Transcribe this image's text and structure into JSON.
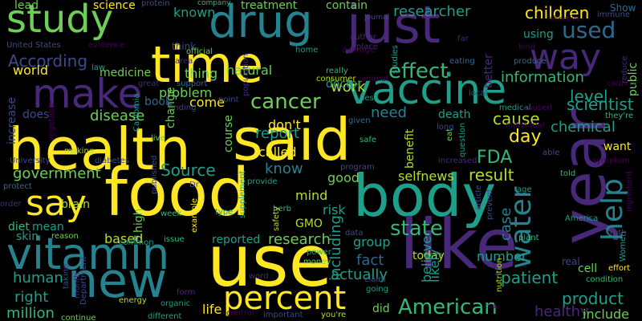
{
  "background_color": "#000000",
  "palette": {
    "yellow": "#fde725",
    "lime": "#b5de2b",
    "green": "#6ece58",
    "sea": "#35b779",
    "teal": "#1f9e89",
    "cyan": "#26828e",
    "blue": "#31688e",
    "indigo": "#3e4989",
    "purple": "#482878",
    "dark": "#440154"
  },
  "words": [
    {
      "text": "health"
    },
    {
      "text": "said"
    },
    {
      "text": "food"
    },
    {
      "text": "body"
    },
    {
      "text": "year"
    },
    {
      "text": "like"
    },
    {
      "text": "use"
    },
    {
      "text": "time"
    },
    {
      "text": "new"
    },
    {
      "text": "just"
    },
    {
      "text": "vitamin"
    },
    {
      "text": "drug"
    },
    {
      "text": "study"
    },
    {
      "text": "make"
    },
    {
      "text": "vaccine"
    },
    {
      "text": "way"
    },
    {
      "text": "say"
    },
    {
      "text": "percent"
    },
    {
      "text": "water"
    },
    {
      "text": "help"
    },
    {
      "text": "cancer"
    },
    {
      "text": "American"
    },
    {
      "text": "effect"
    },
    {
      "text": "used"
    },
    {
      "text": "state"
    },
    {
      "text": "children"
    },
    {
      "text": "Source"
    },
    {
      "text": "government"
    },
    {
      "text": "product"
    },
    {
      "text": "researcher"
    },
    {
      "text": "According"
    },
    {
      "text": "information"
    },
    {
      "text": "level"
    },
    {
      "text": "chemical"
    },
    {
      "text": "day"
    },
    {
      "text": "cause"
    },
    {
      "text": "FDA"
    },
    {
      "text": "selfnews"
    },
    {
      "text": "result"
    },
    {
      "text": "research"
    },
    {
      "text": "disease"
    },
    {
      "text": "patient"
    },
    {
      "text": "scientist"
    },
    {
      "text": "including"
    },
    {
      "text": "fact"
    },
    {
      "text": "actually"
    },
    {
      "text": "human"
    },
    {
      "text": "right"
    },
    {
      "text": "million"
    },
    {
      "text": "brain"
    },
    {
      "text": "diet"
    },
    {
      "text": "mean"
    },
    {
      "text": "world"
    },
    {
      "text": "medicine"
    },
    {
      "text": "work"
    },
    {
      "text": "need"
    },
    {
      "text": "know"
    },
    {
      "text": "report"
    },
    {
      "text": "called"
    },
    {
      "text": "don't"
    },
    {
      "text": "reported"
    },
    {
      "text": "based"
    },
    {
      "text": "life"
    },
    {
      "text": "case"
    },
    {
      "text": "natural"
    },
    {
      "text": "problem"
    },
    {
      "text": "known"
    },
    {
      "text": "thing"
    },
    {
      "text": "come"
    },
    {
      "text": "course"
    },
    {
      "text": "change"
    },
    {
      "text": "book"
    },
    {
      "text": "does"
    },
    {
      "text": "increase"
    },
    {
      "text": "death"
    },
    {
      "text": "mind"
    },
    {
      "text": "good"
    },
    {
      "text": "risk"
    },
    {
      "text": "GMO"
    },
    {
      "text": "group"
    },
    {
      "text": "today"
    },
    {
      "text": "believe"
    },
    {
      "text": "likely"
    },
    {
      "text": "benefit"
    },
    {
      "text": "number"
    },
    {
      "text": "did"
    },
    {
      "text": "healthy"
    },
    {
      "text": "include"
    },
    {
      "text": "cell"
    },
    {
      "text": "want"
    },
    {
      "text": "lead"
    },
    {
      "text": "science"
    },
    {
      "text": "treatment"
    },
    {
      "text": "contain"
    },
    {
      "text": "doctor"
    },
    {
      "text": "using"
    },
    {
      "text": "public"
    },
    {
      "text": "better"
    },
    {
      "text": "high"
    },
    {
      "text": "skin"
    },
    {
      "text": "real"
    },
    {
      "text": "Show"
    },
    {
      "text": "protein"
    },
    {
      "text": "company"
    },
    {
      "text": "Journal"
    },
    {
      "text": "immune"
    },
    {
      "text": "effective"
    },
    {
      "text": "author"
    },
    {
      "text": "place"
    },
    {
      "text": "far"
    },
    {
      "text": "kind"
    },
    {
      "text": "produce"
    },
    {
      "text": "eating"
    },
    {
      "text": "reduce"
    },
    {
      "text": "country"
    },
    {
      "text": "medical"
    },
    {
      "text": "caused"
    },
    {
      "text": "they're"
    },
    {
      "text": "individual"
    },
    {
      "text": "able"
    },
    {
      "text": "symptom"
    },
    {
      "text": "told"
    },
    {
      "text": "America"
    },
    {
      "text": "ingredient"
    },
    {
      "text": "Women"
    },
    {
      "text": "truth"
    },
    {
      "text": "effort"
    },
    {
      "text": "condition"
    },
    {
      "text": "plant"
    },
    {
      "text": "nutrition"
    },
    {
      "text": "article"
    },
    {
      "text": "prevent"
    },
    {
      "text": "age"
    },
    {
      "text": "United States"
    },
    {
      "text": "evidence"
    },
    {
      "text": "law"
    },
    {
      "text": "damage"
    },
    {
      "text": "studies"
    },
    {
      "text": "home"
    },
    {
      "text": "really"
    },
    {
      "text": "consumer"
    },
    {
      "text": "animal"
    },
    {
      "text": "best"
    },
    {
      "text": "local"
    },
    {
      "text": "area"
    },
    {
      "text": "think"
    },
    {
      "text": "great"
    },
    {
      "text": "support"
    },
    {
      "text": "finding"
    },
    {
      "text": "point"
    },
    {
      "text": "population"
    },
    {
      "text": "California"
    },
    {
      "text": "vegetable"
    },
    {
      "text": "live"
    },
    {
      "text": "making"
    },
    {
      "text": "diabetes"
    },
    {
      "text": "University"
    },
    {
      "text": "protect"
    },
    {
      "text": "published"
    },
    {
      "text": "Dr"
    },
    {
      "text": "provide"
    },
    {
      "text": "herb"
    },
    {
      "text": "given"
    },
    {
      "text": "safe"
    },
    {
      "text": "program"
    },
    {
      "text": "increased"
    },
    {
      "text": "eat"
    },
    {
      "text": "long"
    },
    {
      "text": "question"
    },
    {
      "text": "order"
    },
    {
      "text": "week"
    },
    {
      "text": "type"
    },
    {
      "text": "example"
    },
    {
      "text": "supplement"
    },
    {
      "text": "safety"
    },
    {
      "text": "data"
    },
    {
      "text": "power"
    },
    {
      "text": "money"
    },
    {
      "text": "claim"
    },
    {
      "text": "going"
    },
    {
      "text": "issue"
    },
    {
      "text": "common"
    },
    {
      "text": "reason"
    },
    {
      "text": "energy"
    },
    {
      "text": "Department"
    },
    {
      "text": "organic"
    },
    {
      "text": "form"
    },
    {
      "text": "word"
    },
    {
      "text": "you're"
    },
    {
      "text": "control"
    },
    {
      "text": "important"
    },
    {
      "text": "different"
    },
    {
      "text": "continue"
    },
    {
      "text": "month"
    },
    {
      "text": "taking"
    },
    {
      "text": "official"
    },
    {
      "text": "study"
    }
  ]
}
